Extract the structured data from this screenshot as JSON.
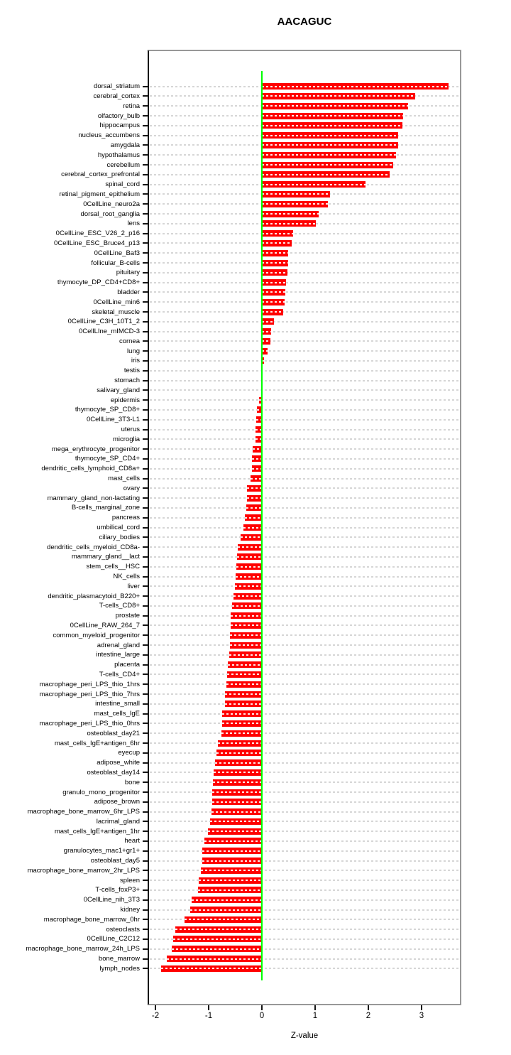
{
  "chart_data": {
    "type": "bar",
    "orientation": "horizontal",
    "title": "AACAGUC",
    "xlabel": "Z-value",
    "xticks": [
      -2,
      -1,
      0,
      1,
      2,
      3
    ],
    "xlim": [
      -2.12,
      3.72
    ],
    "bar_color": "#ff0000",
    "zero_line_color": "#00ff00",
    "grid": "dashed-horizontal",
    "grid_color": "#d6d6d6",
    "legend": "none",
    "categories": [
      "dorsal_striatum",
      "cerebral_cortex",
      "retina",
      "olfactory_bulb",
      "hippocampus",
      "nucleus_accumbens",
      "amygdala",
      "hypothalamus",
      "cerebellum",
      "cerebral_cortex_prefrontal",
      "spinal_cord",
      "retinal_pigment_epithelium",
      "0CellLine_neuro2a",
      "dorsal_root_ganglia",
      "lens",
      "0CellLine_ESC_V26_2_p16",
      "0CellLine_ESC_Bruce4_p13",
      "0CellLine_Baf3",
      "follicular_B-cells",
      "pituitary",
      "thymocyte_DP_CD4+CD8+",
      "bladder",
      "0CellLine_min6",
      "skeletal_muscle",
      "0CellLine_C3H_10T1_2",
      "0CellLIne_mIMCD-3",
      "cornea",
      "lung",
      "iris",
      "testis",
      "stomach",
      "salivary_gland",
      "epidermis",
      "thymocyte_SP_CD8+",
      "0CellLine_3T3-L1",
      "uterus",
      "microglia",
      "mega_erythrocyte_progenitor",
      "thymocyte_SP_CD4+",
      "dendritic_cells_lymphoid_CD8a+",
      "mast_cells",
      "ovary",
      "mammary_gland_non-lactating",
      "B-cells_marginal_zone",
      "pancreas",
      "umbilical_cord",
      "ciliary_bodies",
      "dendritic_cells_myeloid_CD8a-",
      "mammary_gland__lact",
      "stem_cells__HSC",
      "NK_cells",
      "liver",
      "dendritic_plasmacytoid_B220+",
      "T-cells_CD8+",
      "prostate",
      "0CellLine_RAW_264_7",
      "common_myeloid_progenitor",
      "adrenal_gland",
      "intestine_large",
      "placenta",
      "T-cells_CD4+",
      "macrophage_peri_LPS_thio_1hrs",
      "macrophage_peri_LPS_thio_7hrs",
      "intestine_small",
      "mast_cells_IgE",
      "macrophage_peri_LPS_thio_0hrs",
      "osteoblast_day21",
      "mast_cells_IgE+antigen_6hr",
      "eyecup",
      "adipose_white",
      "osteoblast_day14",
      "bone",
      "granulo_mono_progenitor",
      "adipose_brown",
      "macrophage_bone_marrow_6hr_LPS",
      "lacrimal_gland",
      "mast_cells_IgE+antigen_1hr",
      "heart",
      "granulocytes_mac1+gr1+",
      "osteoblast_day5",
      "macrophage_bone_marrow_2hr_LPS",
      "spleen",
      "T-cells_foxP3+",
      "0CellLine_nih_3T3",
      "kidney",
      "macrophage_bone_marrow_0hr",
      "osteoclasts",
      "0CellLine_C2C12",
      "macrophage_bone_marrow_24h_LPS",
      "bone_marrow",
      "lymph_nodes"
    ],
    "values": [
      3.51,
      2.88,
      2.74,
      2.65,
      2.64,
      2.56,
      2.56,
      2.52,
      2.47,
      2.4,
      1.95,
      1.28,
      1.24,
      1.06,
      1.01,
      0.58,
      0.56,
      0.49,
      0.49,
      0.48,
      0.45,
      0.44,
      0.42,
      0.4,
      0.23,
      0.17,
      0.16,
      0.1,
      0.04,
      0.01,
      0.0,
      -0.01,
      -0.06,
      -0.1,
      -0.11,
      -0.12,
      -0.12,
      -0.17,
      -0.19,
      -0.19,
      -0.22,
      -0.28,
      -0.28,
      -0.29,
      -0.32,
      -0.35,
      -0.4,
      -0.46,
      -0.47,
      -0.48,
      -0.5,
      -0.51,
      -0.54,
      -0.56,
      -0.59,
      -0.59,
      -0.6,
      -0.6,
      -0.62,
      -0.64,
      -0.66,
      -0.67,
      -0.69,
      -0.7,
      -0.75,
      -0.75,
      -0.76,
      -0.83,
      -0.86,
      -0.88,
      -0.91,
      -0.92,
      -0.93,
      -0.94,
      -0.95,
      -0.98,
      -1.01,
      -1.08,
      -1.12,
      -1.12,
      -1.15,
      -1.19,
      -1.2,
      -1.32,
      -1.35,
      -1.46,
      -1.63,
      -1.67,
      -1.69,
      -1.79,
      -1.89
    ]
  }
}
